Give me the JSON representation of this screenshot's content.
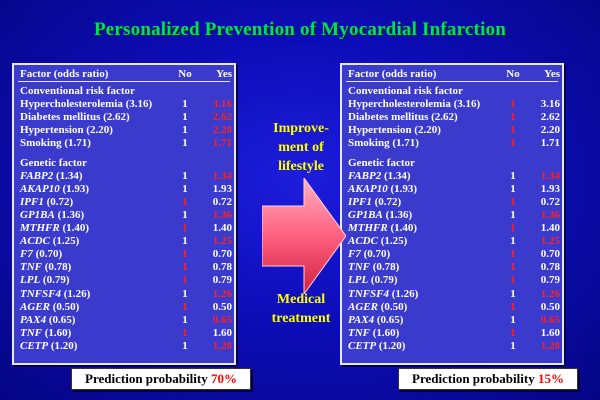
{
  "title": "Personalized Prevention of Myocardial Infarction",
  "table_header": {
    "factor": "Factor (odds ratio)",
    "no": "No",
    "yes": "Yes"
  },
  "sections": {
    "conventional": "Conventional risk factor",
    "genetic": "Genetic factor"
  },
  "conventional_factors": [
    {
      "name": "Hypercholesterolemia (3.16)",
      "yes": "3.16"
    },
    {
      "name": "Diabetes mellitus (2.62)",
      "yes": "2.62"
    },
    {
      "name": "Hypertension (2.20)",
      "yes": "2.20"
    },
    {
      "name": "Smoking (1.71)",
      "yes": "1.71"
    }
  ],
  "genetic_factors": [
    {
      "name": "FABP2",
      "or": "(1.34)",
      "yes": "1.34"
    },
    {
      "name": "AKAP10",
      "or": "(1.93)",
      "yes": "1.93"
    },
    {
      "name": "IPF1",
      "or": "(0.72)",
      "yes": "0.72"
    },
    {
      "name": "GP1BA",
      "or": "(1.36)",
      "yes": "1.36"
    },
    {
      "name": "MTHFR",
      "or": "(1.40)",
      "yes": "1.40"
    },
    {
      "name": "ACDC",
      "or": "(1.25)",
      "yes": "1.25"
    },
    {
      "name": "F7",
      "or": "(0.70)",
      "yes": "0.70"
    },
    {
      "name": "TNF",
      "or": "(0.78)",
      "yes": "0.78"
    },
    {
      "name": "LPL",
      "or": "(0.79)",
      "yes": "0.79"
    },
    {
      "name": "TNFSF4",
      "or": "(1.26)",
      "yes": "1.26"
    },
    {
      "name": "AGER",
      "or": "(0.50)",
      "yes": "0.50"
    },
    {
      "name": "PAX4",
      "or": "(0.65)",
      "yes": "0.65"
    },
    {
      "name": "TNF",
      "or": "(1.60)",
      "yes": "1.60"
    },
    {
      "name": "CETP",
      "or": "(1.20)",
      "yes": "1.20"
    }
  ],
  "no_value": "1",
  "left_panel": {
    "conventional_red_yes": [
      true,
      true,
      true,
      true
    ],
    "conventional_red_no": [
      false,
      false,
      false,
      false
    ],
    "genetic_red_yes": [
      true,
      false,
      false,
      true,
      false,
      true,
      false,
      false,
      false,
      true,
      false,
      true,
      false,
      true
    ],
    "genetic_red_no": [
      false,
      false,
      true,
      false,
      true,
      false,
      true,
      true,
      true,
      false,
      true,
      false,
      true,
      false
    ],
    "prediction_label": "Prediction probability",
    "prediction_value": "70%"
  },
  "right_panel": {
    "conventional_red_yes": [
      false,
      false,
      false,
      false
    ],
    "conventional_red_no": [
      true,
      true,
      true,
      true
    ],
    "genetic_red_yes": [
      true,
      false,
      false,
      true,
      false,
      true,
      false,
      false,
      false,
      true,
      false,
      true,
      false,
      true
    ],
    "genetic_red_no": [
      false,
      false,
      true,
      false,
      true,
      false,
      true,
      true,
      true,
      false,
      true,
      false,
      true,
      false
    ],
    "prediction_label": "Prediction probability",
    "prediction_value": "15%"
  },
  "middle": {
    "top_label_lines": [
      "Improve-",
      "ment of",
      "lifestyle"
    ],
    "bottom_label_lines": [
      "Medical",
      "treatment"
    ]
  },
  "colors": {
    "title": "#00e060",
    "section": "#ffff00",
    "highlight": "#ff2020",
    "arrow": "#ff7090"
  }
}
